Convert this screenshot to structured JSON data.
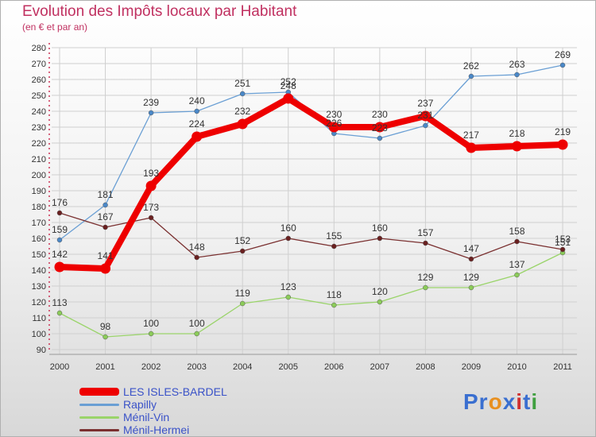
{
  "title": "Evolution des Impôts locaux par Habitant",
  "subtitle": "(en € et par an)",
  "logo": {
    "parts": [
      "Pr",
      "o",
      "x",
      "i",
      "t",
      "i"
    ],
    "colors": [
      "#3a6fd0",
      "#e89020",
      "#3a6fd0",
      "#d03030",
      "#3a6fd0",
      "#40a040"
    ]
  },
  "chart_data": {
    "type": "line",
    "title": "Evolution des Impôts locaux par Habitant",
    "ylabel": "(en € et par an)",
    "xlabel": "",
    "categories": [
      "2000",
      "2001",
      "2002",
      "2003",
      "2004",
      "2005",
      "2006",
      "2007",
      "2008",
      "2009",
      "2010",
      "2011"
    ],
    "ylim": [
      90,
      280
    ],
    "yticks": [
      90,
      100,
      110,
      120,
      130,
      140,
      150,
      160,
      170,
      180,
      190,
      200,
      210,
      220,
      230,
      240,
      250,
      260,
      270,
      280
    ],
    "grid": true,
    "series": [
      {
        "name": "Rapilly",
        "color": "#6a9fd4",
        "marker": "#4a88c8",
        "values": [
          159,
          181,
          239,
          240,
          251,
          252,
          226,
          223,
          231,
          262,
          263,
          269
        ]
      },
      {
        "name": "Ménil-Vin",
        "color": "#9ad46a",
        "marker": "#8ccc5a",
        "values": [
          113,
          98,
          100,
          100,
          119,
          123,
          118,
          120,
          129,
          129,
          137,
          151
        ]
      },
      {
        "name": "Ménil-Hermei",
        "color": "#7a3030",
        "marker": "#6a2020",
        "values": [
          176,
          167,
          173,
          148,
          152,
          160,
          155,
          160,
          157,
          147,
          158,
          153
        ]
      },
      {
        "name": "LES ISLES-BARDEL",
        "color": "#ee0000",
        "marker": "#ee0000",
        "values": [
          142,
          141,
          193,
          224,
          232,
          248,
          230,
          230,
          237,
          217,
          218,
          219
        ]
      }
    ],
    "legend": [
      {
        "name": "LES ISLES-BARDEL",
        "color": "#ee0000"
      },
      {
        "name": "Rapilly",
        "color": "#6a9fd4"
      },
      {
        "name": "Ménil-Vin",
        "color": "#9ad46a"
      },
      {
        "name": "Ménil-Hermei",
        "color": "#7a3030"
      }
    ],
    "legend_position": "bottom-left"
  }
}
